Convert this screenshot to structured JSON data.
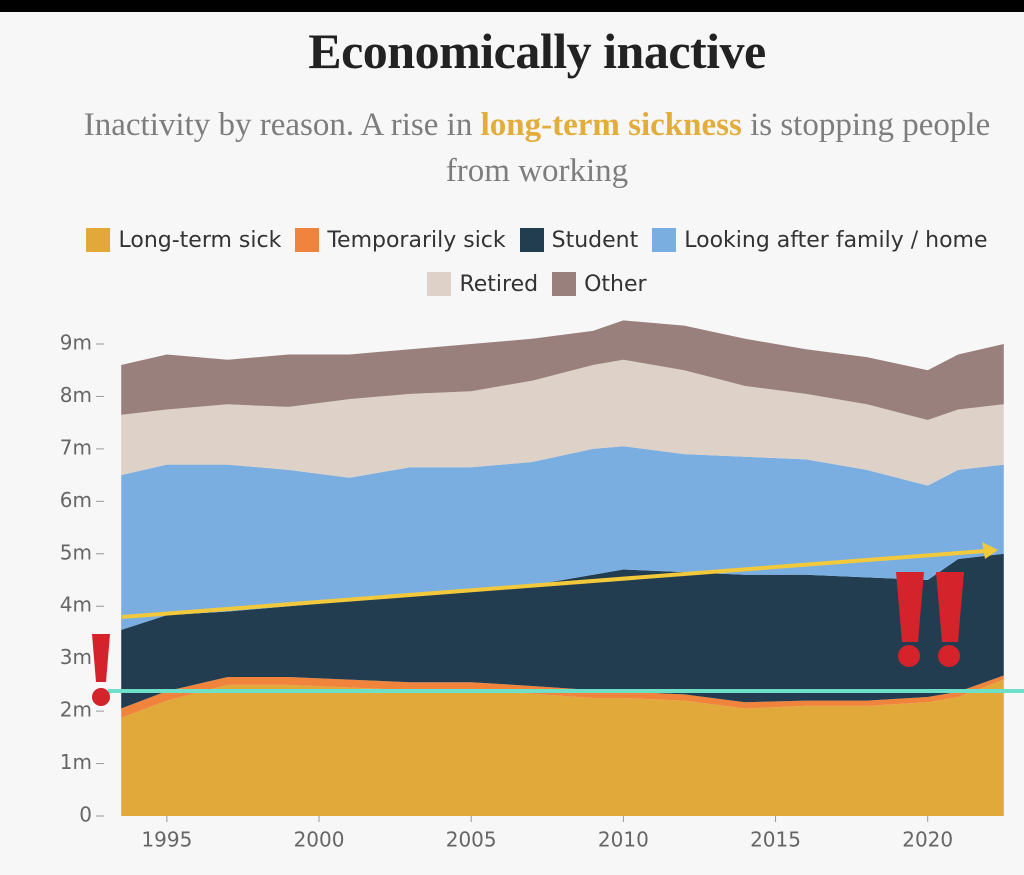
{
  "chart_data": {
    "type": "area",
    "title": "Economically inactive",
    "subtitle": [
      "Inactivity by reason. A rise in ",
      "long-term sickness",
      " is stopping people from working"
    ],
    "stacked": true,
    "x": [
      1993.5,
      1995,
      1997,
      1999,
      2001,
      2003,
      2005,
      2007,
      2009,
      2010,
      2012,
      2014,
      2016,
      2018,
      2020,
      2021,
      2022.5
    ],
    "series": [
      {
        "name": "Long-term sick",
        "color": "#e1a93a",
        "values": [
          1.87,
          2.2,
          2.5,
          2.5,
          2.45,
          2.4,
          2.4,
          2.33,
          2.25,
          2.25,
          2.2,
          2.05,
          2.1,
          2.1,
          2.17,
          2.27,
          2.6
        ]
      },
      {
        "name": "Temporarily sick",
        "color": "#f0843c",
        "values": [
          0.18,
          0.18,
          0.15,
          0.15,
          0.15,
          0.15,
          0.15,
          0.15,
          0.15,
          0.12,
          0.12,
          0.12,
          0.1,
          0.1,
          0.1,
          0.1,
          0.08
        ]
      },
      {
        "name": "Student",
        "color": "#233d50",
        "values": [
          1.5,
          1.45,
          1.25,
          1.35,
          1.5,
          1.65,
          1.75,
          1.92,
          2.2,
          2.33,
          2.33,
          2.43,
          2.4,
          2.35,
          2.23,
          2.53,
          2.32
        ]
      },
      {
        "name": "Looking after family / home",
        "color": "#7baee0",
        "values": [
          2.95,
          2.87,
          2.8,
          2.6,
          2.35,
          2.45,
          2.35,
          2.35,
          2.4,
          2.35,
          2.25,
          2.25,
          2.2,
          2.05,
          1.8,
          1.7,
          1.7
        ]
      },
      {
        "name": "Retired",
        "color": "#ddd1c8",
        "values": [
          1.15,
          1.05,
          1.15,
          1.2,
          1.5,
          1.4,
          1.45,
          1.55,
          1.6,
          1.65,
          1.6,
          1.35,
          1.25,
          1.25,
          1.25,
          1.15,
          1.15
        ]
      },
      {
        "name": "Other",
        "color": "#9a807c",
        "values": [
          0.95,
          1.05,
          0.85,
          1.0,
          0.85,
          0.85,
          0.9,
          0.8,
          0.65,
          0.75,
          0.85,
          0.9,
          0.85,
          0.9,
          0.95,
          1.05,
          1.15
        ]
      }
    ],
    "xlim": [
      1993,
      2023
    ],
    "xticks": [
      1995,
      2000,
      2005,
      2010,
      2015,
      2020
    ],
    "ylim": [
      0,
      9
    ],
    "yticks": [
      0,
      {
        "value": 1,
        "label": "1m"
      },
      {
        "value": 2,
        "label": "2m"
      },
      {
        "value": 3,
        "label": "3m"
      },
      {
        "value": 4,
        "label": "4m"
      },
      {
        "value": 5,
        "label": "5m"
      },
      {
        "value": 6,
        "label": "6m"
      },
      {
        "value": 7,
        "label": "7m"
      },
      {
        "value": 8,
        "label": "8m"
      },
      {
        "value": 9,
        "label": "9m"
      }
    ],
    "grid": false
  }
}
